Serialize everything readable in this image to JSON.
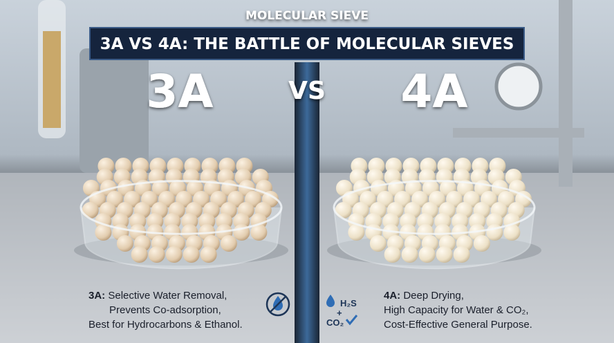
{
  "header": {
    "kicker": "MOLECULAR SIEVE",
    "title": "3A VS 4A: THE BATTLE OF MOLECULAR SIEVES"
  },
  "labels": {
    "left": "3A",
    "vs": "VS",
    "right": "4A"
  },
  "left_caption": {
    "lead": "3A:",
    "lines": [
      "Selective Water Removal,",
      "Prevents Co-adsorption,",
      "Best for Hydrocarbons & Ethanol."
    ]
  },
  "right_caption": {
    "lead": "4A:",
    "lines": [
      "Deep Drying,",
      "High Capacity for Water & CO₂,",
      "Cost-Effective General Purpose."
    ]
  },
  "right_icon": {
    "top": "H₂S",
    "plus": "+",
    "bottom": "CO₂"
  }
}
